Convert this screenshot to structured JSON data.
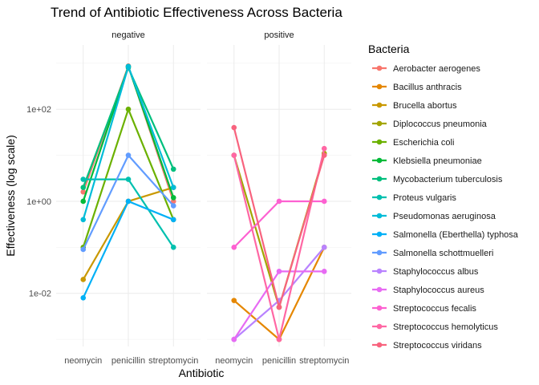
{
  "chart_data": {
    "type": "line",
    "title": "Trend of Antibiotic Effectiveness Across Bacteria",
    "xlabel": "Antibiotic",
    "ylabel": "Effectiveness (log scale)",
    "y_scale": "log10",
    "ylim": [
      0.0007,
      2500
    ],
    "y_ticks": [
      {
        "value": 0.01,
        "label": "1e-02"
      },
      {
        "value": 1,
        "label": "1e+00"
      },
      {
        "value": 100,
        "label": "1e+02"
      }
    ],
    "categories": [
      "neomycin",
      "penicillin",
      "streptomycin"
    ],
    "facets": [
      "negative",
      "positive"
    ],
    "legend": {
      "title": "Bacteria",
      "position": "right"
    },
    "grid": true,
    "series": [
      {
        "name": "Aerobacter aerogenes",
        "color": "#F8766D",
        "facet": "negative",
        "values": [
          1.6,
          870,
          1
        ]
      },
      {
        "name": "Bacillus anthracis",
        "color": "#E58700",
        "facet": "positive",
        "values": [
          0.007,
          0.001,
          0.1
        ]
      },
      {
        "name": "Brucella abortus",
        "color": "#C99800",
        "facet": "negative",
        "values": [
          0.02,
          1,
          2
        ]
      },
      {
        "name": "Diplococcus pneumonia",
        "color": "#A3A500",
        "facet": "positive",
        "values": [
          10,
          0.005,
          11
        ]
      },
      {
        "name": "Escherichia coli",
        "color": "#6BB100",
        "facet": "negative",
        "values": [
          0.1,
          100,
          0.4
        ]
      },
      {
        "name": "Klebsiella pneumoniae",
        "color": "#00BA38",
        "facet": "negative",
        "values": [
          1,
          850,
          1.2
        ]
      },
      {
        "name": "Mycobacterium tuberculosis",
        "color": "#00BF7D",
        "facet": "negative",
        "values": [
          2,
          800,
          5
        ]
      },
      {
        "name": "Proteus vulgaris",
        "color": "#00C0AF",
        "facet": "negative",
        "values": [
          3,
          3,
          0.1
        ]
      },
      {
        "name": "Pseudomonas aeruginosa",
        "color": "#00BCD8",
        "facet": "negative",
        "values": [
          0.4,
          850,
          2
        ]
      },
      {
        "name": "Salmonella (Eberthella) typhosa",
        "color": "#00B0F6",
        "facet": "negative",
        "values": [
          0.008,
          1,
          0.4
        ]
      },
      {
        "name": "Salmonella schottmuelleri",
        "color": "#619CFF",
        "facet": "negative",
        "values": [
          0.09,
          10,
          0.8
        ]
      },
      {
        "name": "Staphylococcus albus",
        "color": "#B983FF",
        "facet": "positive",
        "values": [
          0.001,
          0.007,
          0.1
        ]
      },
      {
        "name": "Staphylococcus aureus",
        "color": "#E76BF3",
        "facet": "positive",
        "values": [
          0.001,
          0.03,
          0.03
        ]
      },
      {
        "name": "Streptococcus fecalis",
        "color": "#FD61D1",
        "facet": "positive",
        "values": [
          0.1,
          1,
          1
        ]
      },
      {
        "name": "Streptococcus hemolyticus",
        "color": "#FF67A4",
        "facet": "positive",
        "values": [
          10,
          0.001,
          14
        ]
      },
      {
        "name": "Streptococcus viridans",
        "color": "#F8637E",
        "facet": "positive",
        "values": [
          40,
          0.005,
          10
        ]
      }
    ]
  }
}
